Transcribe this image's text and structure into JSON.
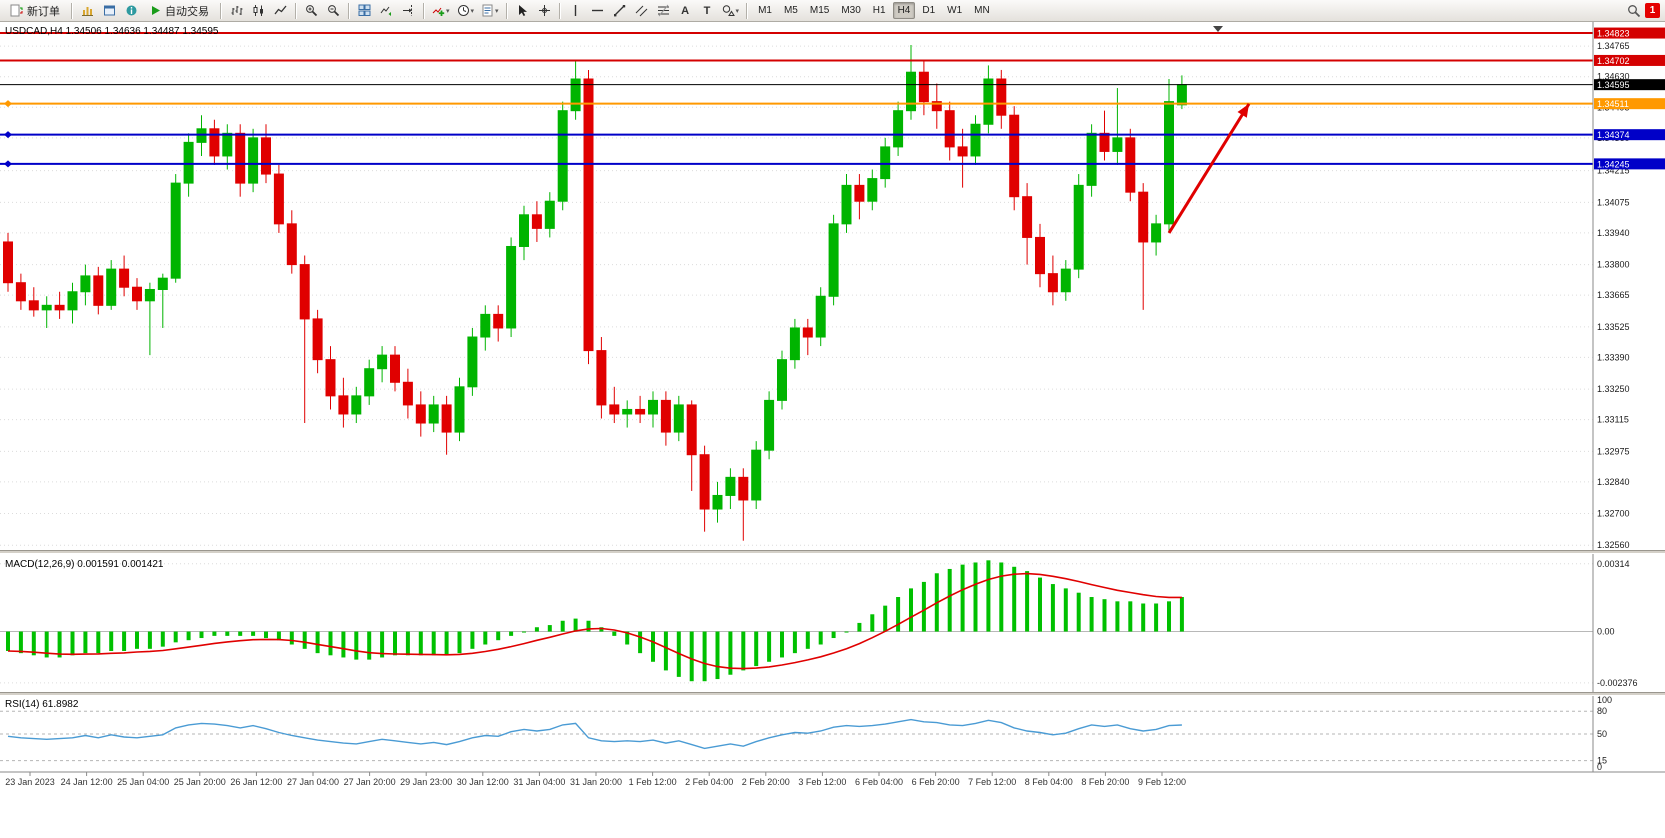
{
  "toolbar": {
    "new_order": "新订单",
    "auto_trading": "自动交易",
    "timeframes": [
      "M1",
      "M5",
      "M15",
      "M30",
      "H1",
      "H4",
      "D1",
      "W1",
      "MN"
    ],
    "active_timeframe": "H4",
    "notification_count": "1"
  },
  "chart": {
    "title": "USDCAD,H4 1.34506 1.34636 1.34487 1.34595"
  },
  "chart_data": {
    "type": "candlestick",
    "symbol": "USDCAD",
    "period": "H4",
    "last_ohlc": {
      "open": 1.34506,
      "high": 1.34636,
      "low": 1.34487,
      "close": 1.34595
    },
    "price_axis": {
      "range": [
        1.32539,
        1.34863
      ],
      "grid_labels": [
        "1.34765",
        "1.34630",
        "1.34495",
        "1.34360",
        "1.34215",
        "1.34075",
        "1.33940",
        "1.33800",
        "1.33665",
        "1.33525",
        "1.33390",
        "1.33250",
        "1.33115",
        "1.32975",
        "1.32840",
        "1.32700",
        "1.32560"
      ]
    },
    "price_lines": [
      {
        "price": 1.34823,
        "label": "1.34823",
        "color": "#d40000",
        "width": 2,
        "handle": false
      },
      {
        "price": 1.34702,
        "label": "1.34702",
        "color": "#d40000",
        "width": 2,
        "handle": false
      },
      {
        "price": 1.34595,
        "label": "1.34595",
        "color": "#000000",
        "width": 1,
        "handle": false
      },
      {
        "price": 1.34511,
        "label": "1.34511",
        "color": "#ff9900",
        "width": 2,
        "handle": true
      },
      {
        "price": 1.34374,
        "label": "1.34374",
        "color": "#0000c8",
        "width": 2,
        "handle": true
      },
      {
        "price": 1.34245,
        "label": "1.34245",
        "color": "#0000c8",
        "width": 2,
        "handle": true
      }
    ],
    "time_labels": [
      "23 Jan 2023",
      "24 Jan 12:00",
      "25 Jan 04:00",
      "25 Jan 20:00",
      "26 Jan 12:00",
      "27 Jan 04:00",
      "27 Jan 20:00",
      "29 Jan 23:00",
      "30 Jan 12:00",
      "31 Jan 04:00",
      "31 Jan 20:00",
      "1 Feb 12:00",
      "2 Feb 04:00",
      "2 Feb 20:00",
      "3 Feb 12:00",
      "6 Feb 04:00",
      "6 Feb 20:00",
      "7 Feb 12:00",
      "8 Feb 04:00",
      "8 Feb 20:00",
      "9 Feb 12:00"
    ],
    "candles": [
      [
        1.339,
        1.3394,
        1.3368,
        1.3372
      ],
      [
        1.3372,
        1.3376,
        1.336,
        1.3364
      ],
      [
        1.3364,
        1.337,
        1.3357,
        1.336
      ],
      [
        1.336,
        1.3366,
        1.3352,
        1.3362
      ],
      [
        1.3362,
        1.3368,
        1.3356,
        1.336
      ],
      [
        1.336,
        1.3372,
        1.3354,
        1.3368
      ],
      [
        1.3368,
        1.338,
        1.3362,
        1.3375
      ],
      [
        1.3375,
        1.3379,
        1.3358,
        1.3362
      ],
      [
        1.3362,
        1.3382,
        1.336,
        1.3378
      ],
      [
        1.3378,
        1.3384,
        1.3366,
        1.337
      ],
      [
        1.337,
        1.3374,
        1.336,
        1.3364
      ],
      [
        1.3364,
        1.3372,
        1.334,
        1.3369
      ],
      [
        1.3369,
        1.3376,
        1.3352,
        1.3374
      ],
      [
        1.3374,
        1.342,
        1.3372,
        1.3416
      ],
      [
        1.3416,
        1.3438,
        1.341,
        1.3434
      ],
      [
        1.3434,
        1.3446,
        1.3428,
        1.344
      ],
      [
        1.344,
        1.3444,
        1.3424,
        1.3428
      ],
      [
        1.3428,
        1.3442,
        1.3422,
        1.3438
      ],
      [
        1.3438,
        1.3442,
        1.341,
        1.3416
      ],
      [
        1.3416,
        1.344,
        1.3412,
        1.3436
      ],
      [
        1.3436,
        1.3442,
        1.3416,
        1.342
      ],
      [
        1.342,
        1.3424,
        1.3394,
        1.3398
      ],
      [
        1.3398,
        1.3404,
        1.3376,
        1.338
      ],
      [
        1.338,
        1.3384,
        1.331,
        1.3356
      ],
      [
        1.3356,
        1.336,
        1.3332,
        1.3338
      ],
      [
        1.3338,
        1.3344,
        1.3316,
        1.3322
      ],
      [
        1.3322,
        1.333,
        1.3308,
        1.3314
      ],
      [
        1.3314,
        1.3326,
        1.331,
        1.3322
      ],
      [
        1.3322,
        1.3338,
        1.3318,
        1.3334
      ],
      [
        1.3334,
        1.3344,
        1.3328,
        1.334
      ],
      [
        1.334,
        1.3344,
        1.3324,
        1.3328
      ],
      [
        1.3328,
        1.3334,
        1.3312,
        1.3318
      ],
      [
        1.3318,
        1.3324,
        1.3304,
        1.331
      ],
      [
        1.331,
        1.3322,
        1.3306,
        1.3318
      ],
      [
        1.3318,
        1.3322,
        1.3296,
        1.3306
      ],
      [
        1.3306,
        1.333,
        1.3302,
        1.3326
      ],
      [
        1.3326,
        1.3352,
        1.3322,
        1.3348
      ],
      [
        1.3348,
        1.3362,
        1.3342,
        1.3358
      ],
      [
        1.3358,
        1.3362,
        1.3346,
        1.3352
      ],
      [
        1.3352,
        1.3392,
        1.3348,
        1.3388
      ],
      [
        1.3388,
        1.3406,
        1.3382,
        1.3402
      ],
      [
        1.3402,
        1.3408,
        1.339,
        1.3396
      ],
      [
        1.3396,
        1.3412,
        1.3392,
        1.3408
      ],
      [
        1.3408,
        1.3452,
        1.3404,
        1.3448
      ],
      [
        1.3448,
        1.347,
        1.3444,
        1.3462
      ],
      [
        1.3462,
        1.3466,
        1.3336,
        1.3342
      ],
      [
        1.3342,
        1.3348,
        1.3312,
        1.3318
      ],
      [
        1.3318,
        1.3326,
        1.331,
        1.3314
      ],
      [
        1.3314,
        1.332,
        1.3308,
        1.3316
      ],
      [
        1.3316,
        1.3322,
        1.331,
        1.3314
      ],
      [
        1.3314,
        1.3324,
        1.3308,
        1.332
      ],
      [
        1.332,
        1.3324,
        1.33,
        1.3306
      ],
      [
        1.3306,
        1.3322,
        1.3302,
        1.3318
      ],
      [
        1.3318,
        1.332,
        1.328,
        1.3296
      ],
      [
        1.3296,
        1.33,
        1.3262,
        1.3272
      ],
      [
        1.3272,
        1.3284,
        1.3266,
        1.3278
      ],
      [
        1.3278,
        1.329,
        1.3272,
        1.3286
      ],
      [
        1.3286,
        1.329,
        1.3258,
        1.3276
      ],
      [
        1.3276,
        1.3302,
        1.3272,
        1.3298
      ],
      [
        1.3298,
        1.3324,
        1.3294,
        1.332
      ],
      [
        1.332,
        1.3342,
        1.3316,
        1.3338
      ],
      [
        1.3338,
        1.3356,
        1.3334,
        1.3352
      ],
      [
        1.3352,
        1.3356,
        1.334,
        1.3348
      ],
      [
        1.3348,
        1.337,
        1.3344,
        1.3366
      ],
      [
        1.3366,
        1.3402,
        1.3362,
        1.3398
      ],
      [
        1.3398,
        1.342,
        1.3394,
        1.3415
      ],
      [
        1.3415,
        1.342,
        1.34,
        1.3408
      ],
      [
        1.3408,
        1.3422,
        1.3404,
        1.3418
      ],
      [
        1.3418,
        1.3436,
        1.3414,
        1.3432
      ],
      [
        1.3432,
        1.3452,
        1.3428,
        1.3448
      ],
      [
        1.3448,
        1.3477,
        1.3444,
        1.3465
      ],
      [
        1.3465,
        1.347,
        1.3446,
        1.3452
      ],
      [
        1.3452,
        1.346,
        1.344,
        1.3448
      ],
      [
        1.3448,
        1.3452,
        1.3426,
        1.3432
      ],
      [
        1.3432,
        1.344,
        1.3414,
        1.3428
      ],
      [
        1.3428,
        1.3446,
        1.3424,
        1.3442
      ],
      [
        1.3442,
        1.3468,
        1.3438,
        1.3462
      ],
      [
        1.3462,
        1.3466,
        1.344,
        1.3446
      ],
      [
        1.3446,
        1.345,
        1.3404,
        1.341
      ],
      [
        1.341,
        1.3416,
        1.338,
        1.3392
      ],
      [
        1.3392,
        1.3398,
        1.337,
        1.3376
      ],
      [
        1.3376,
        1.3384,
        1.3362,
        1.3368
      ],
      [
        1.3368,
        1.3382,
        1.3364,
        1.3378
      ],
      [
        1.3378,
        1.342,
        1.3374,
        1.3415
      ],
      [
        1.3415,
        1.3442,
        1.341,
        1.3438
      ],
      [
        1.3438,
        1.3448,
        1.3426,
        1.343
      ],
      [
        1.343,
        1.3458,
        1.3424,
        1.3436
      ],
      [
        1.3436,
        1.344,
        1.3408,
        1.3412
      ],
      [
        1.3412,
        1.3416,
        1.336,
        1.339
      ],
      [
        1.339,
        1.3402,
        1.3384,
        1.3398
      ],
      [
        1.3398,
        1.3462,
        1.3394,
        1.3452
      ],
      [
        1.34506,
        1.34636,
        1.34487,
        1.34595
      ]
    ],
    "arrow": {
      "from_index": 91,
      "from_price": 1.3394,
      "to_index": 97.2,
      "to_price": 1.3451,
      "color": "#e00000",
      "width": 3
    },
    "macd": {
      "label": "MACD(12,26,9)",
      "values_text": "0.001591 0.001421",
      "axis_labels": [
        "0.00314",
        "0.00",
        "-0.002376"
      ],
      "range": [
        -0.0028,
        0.0035
      ],
      "histogram_color": "#00c000",
      "signal_color": "#e00000",
      "histogram": [
        -0.0009,
        -0.001,
        -0.0011,
        -0.0012,
        -0.0012,
        -0.0011,
        -0.001,
        -0.001,
        -0.0009,
        -0.0009,
        -0.0008,
        -0.0008,
        -0.0007,
        -0.0005,
        -0.0004,
        -0.0003,
        -0.0002,
        -0.0002,
        -0.0002,
        -0.0002,
        -0.0003,
        -0.0004,
        -0.0006,
        -0.0008,
        -0.001,
        -0.0011,
        -0.0012,
        -0.0013,
        -0.0013,
        -0.0012,
        -0.0011,
        -0.0011,
        -0.0011,
        -0.0011,
        -0.0011,
        -0.001,
        -0.0008,
        -0.0006,
        -0.0004,
        -0.0002,
        0.0,
        0.0002,
        0.0003,
        0.0005,
        0.0006,
        0.0005,
        0.0002,
        -0.0002,
        -0.0006,
        -0.001,
        -0.0014,
        -0.0018,
        -0.0021,
        -0.0023,
        -0.0023,
        -0.0022,
        -0.002,
        -0.0018,
        -0.0016,
        -0.0014,
        -0.0012,
        -0.001,
        -0.0008,
        -0.0006,
        -0.0003,
        0.0,
        0.0004,
        0.0008,
        0.0012,
        0.0016,
        0.002,
        0.0023,
        0.0027,
        0.0029,
        0.0031,
        0.0032,
        0.0033,
        0.0032,
        0.003,
        0.0028,
        0.0025,
        0.0022,
        0.002,
        0.0018,
        0.0016,
        0.0015,
        0.0014,
        0.0014,
        0.0013,
        0.0013,
        0.0014,
        0.0016
      ]
    },
    "rsi": {
      "label": "RSI(14)",
      "value_text": "61.8982",
      "levels": [
        80,
        50,
        15
      ],
      "axis_labels": [
        100,
        80,
        50,
        15,
        0
      ],
      "range": [
        0,
        100
      ],
      "line_color": "#4a9bd4",
      "values": [
        47,
        45,
        44,
        43,
        44,
        45,
        48,
        45,
        49,
        46,
        45,
        47,
        49,
        58,
        62,
        64,
        63,
        61,
        58,
        61,
        57,
        52,
        48,
        45,
        42,
        40,
        38,
        37,
        40,
        43,
        41,
        39,
        37,
        39,
        36,
        40,
        45,
        48,
        47,
        53,
        56,
        54,
        56,
        62,
        64,
        45,
        41,
        40,
        41,
        40,
        42,
        38,
        41,
        36,
        31,
        34,
        37,
        34,
        40,
        45,
        49,
        52,
        51,
        54,
        59,
        61,
        60,
        61,
        63,
        66,
        69,
        66,
        65,
        62,
        61,
        64,
        68,
        65,
        58,
        54,
        52,
        49,
        51,
        57,
        62,
        60,
        62,
        57,
        54,
        56,
        61,
        61.9
      ]
    }
  }
}
